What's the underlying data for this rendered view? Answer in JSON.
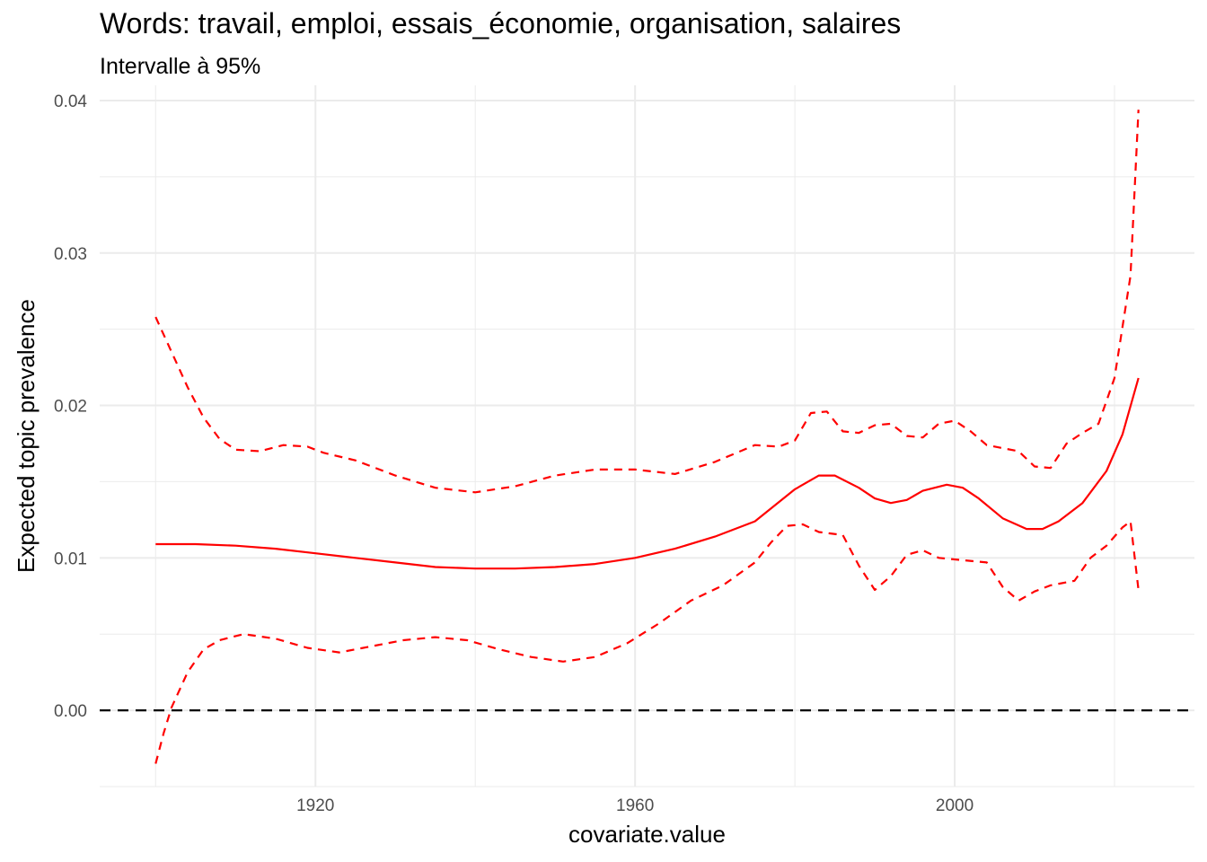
{
  "chart_data": {
    "type": "line",
    "title": "Words: travail, emploi, essais_économie, organisation, salaires",
    "subtitle": "Intervalle à 95%",
    "xlabel": "covariate.value",
    "ylabel": "Expected topic prevalence",
    "xlim": [
      1893,
      2030
    ],
    "ylim": [
      -0.005,
      0.041
    ],
    "x_ticks": [
      1920,
      1960,
      2000
    ],
    "x_tick_labels": [
      "1920",
      "1960",
      "2000"
    ],
    "y_ticks": [
      0.0,
      0.01,
      0.02,
      0.03,
      0.04
    ],
    "y_tick_labels": [
      "0.00",
      "0.01",
      "0.02",
      "0.03",
      "0.04"
    ],
    "grid": true,
    "reference_line": {
      "y": 0.0,
      "style": "dashed",
      "color": "#000000"
    },
    "colors": {
      "series": "#ff0000",
      "grid": "#ebebeb",
      "reference": "#000000"
    },
    "series": [
      {
        "name": "estimate",
        "style": "solid",
        "x": [
          1900,
          1905,
          1910,
          1915,
          1920,
          1925,
          1930,
          1935,
          1940,
          1945,
          1950,
          1955,
          1960,
          1965,
          1970,
          1975,
          1980,
          1983,
          1985,
          1988,
          1990,
          1992,
          1994,
          1996,
          1999,
          2001,
          2003,
          2006,
          2009,
          2011,
          2013,
          2016,
          2019,
          2021,
          2023
        ],
        "y": [
          0.0109,
          0.0109,
          0.0108,
          0.0106,
          0.0103,
          0.01,
          0.0097,
          0.0094,
          0.0093,
          0.0093,
          0.0094,
          0.0096,
          0.01,
          0.0106,
          0.0114,
          0.0124,
          0.0145,
          0.0154,
          0.0154,
          0.0146,
          0.0139,
          0.0136,
          0.0138,
          0.0144,
          0.0148,
          0.0146,
          0.0139,
          0.0126,
          0.0119,
          0.0119,
          0.0124,
          0.0136,
          0.0157,
          0.0181,
          0.0218
        ]
      },
      {
        "name": "upper 95%",
        "style": "dashed",
        "x": [
          1900,
          1902,
          1904,
          1906,
          1908,
          1910,
          1913,
          1916,
          1919,
          1921,
          1925,
          1930,
          1935,
          1940,
          1945,
          1950,
          1955,
          1960,
          1965,
          1970,
          1975,
          1978,
          1980,
          1982,
          1984,
          1986,
          1988,
          1990,
          1992,
          1994,
          1996,
          1998,
          2000,
          2002,
          2004,
          2008,
          2010,
          2012,
          2014,
          2016,
          2018,
          2020,
          2022,
          2023
        ],
        "y": [
          0.0258,
          0.0235,
          0.0212,
          0.0192,
          0.0178,
          0.0171,
          0.017,
          0.0174,
          0.0173,
          0.0169,
          0.0164,
          0.0154,
          0.0146,
          0.0143,
          0.0147,
          0.0154,
          0.0158,
          0.0158,
          0.0155,
          0.0163,
          0.0174,
          0.0173,
          0.0177,
          0.0195,
          0.0196,
          0.0183,
          0.0182,
          0.0187,
          0.0188,
          0.018,
          0.0179,
          0.0188,
          0.019,
          0.0183,
          0.0174,
          0.017,
          0.016,
          0.0159,
          0.0175,
          0.0182,
          0.0188,
          0.0218,
          0.0285,
          0.0394
        ]
      },
      {
        "name": "lower 95%",
        "style": "dashed",
        "x": [
          1900,
          1901,
          1902,
          1904,
          1906,
          1908,
          1911,
          1915,
          1919,
          1923,
          1927,
          1931,
          1935,
          1939,
          1943,
          1947,
          1951,
          1955,
          1959,
          1963,
          1967,
          1971,
          1975,
          1977,
          1979,
          1981,
          1983,
          1986,
          1988,
          1990,
          1992,
          1994,
          1996,
          1998,
          2000,
          2004,
          2006,
          2008,
          2010,
          2012,
          2015,
          2017,
          2019,
          2021,
          2022,
          2023
        ],
        "y": [
          -0.0035,
          -0.0015,
          0.0002,
          0.0025,
          0.004,
          0.0046,
          0.005,
          0.0047,
          0.0041,
          0.0038,
          0.0042,
          0.0046,
          0.0048,
          0.0046,
          0.004,
          0.0035,
          0.0032,
          0.0035,
          0.0044,
          0.0057,
          0.0072,
          0.0082,
          0.0097,
          0.011,
          0.0121,
          0.0122,
          0.0117,
          0.0115,
          0.0095,
          0.0079,
          0.0088,
          0.0102,
          0.0105,
          0.01,
          0.0099,
          0.0097,
          0.0081,
          0.0072,
          0.0078,
          0.0082,
          0.0085,
          0.01,
          0.0108,
          0.012,
          0.0124,
          0.0079
        ]
      }
    ]
  }
}
